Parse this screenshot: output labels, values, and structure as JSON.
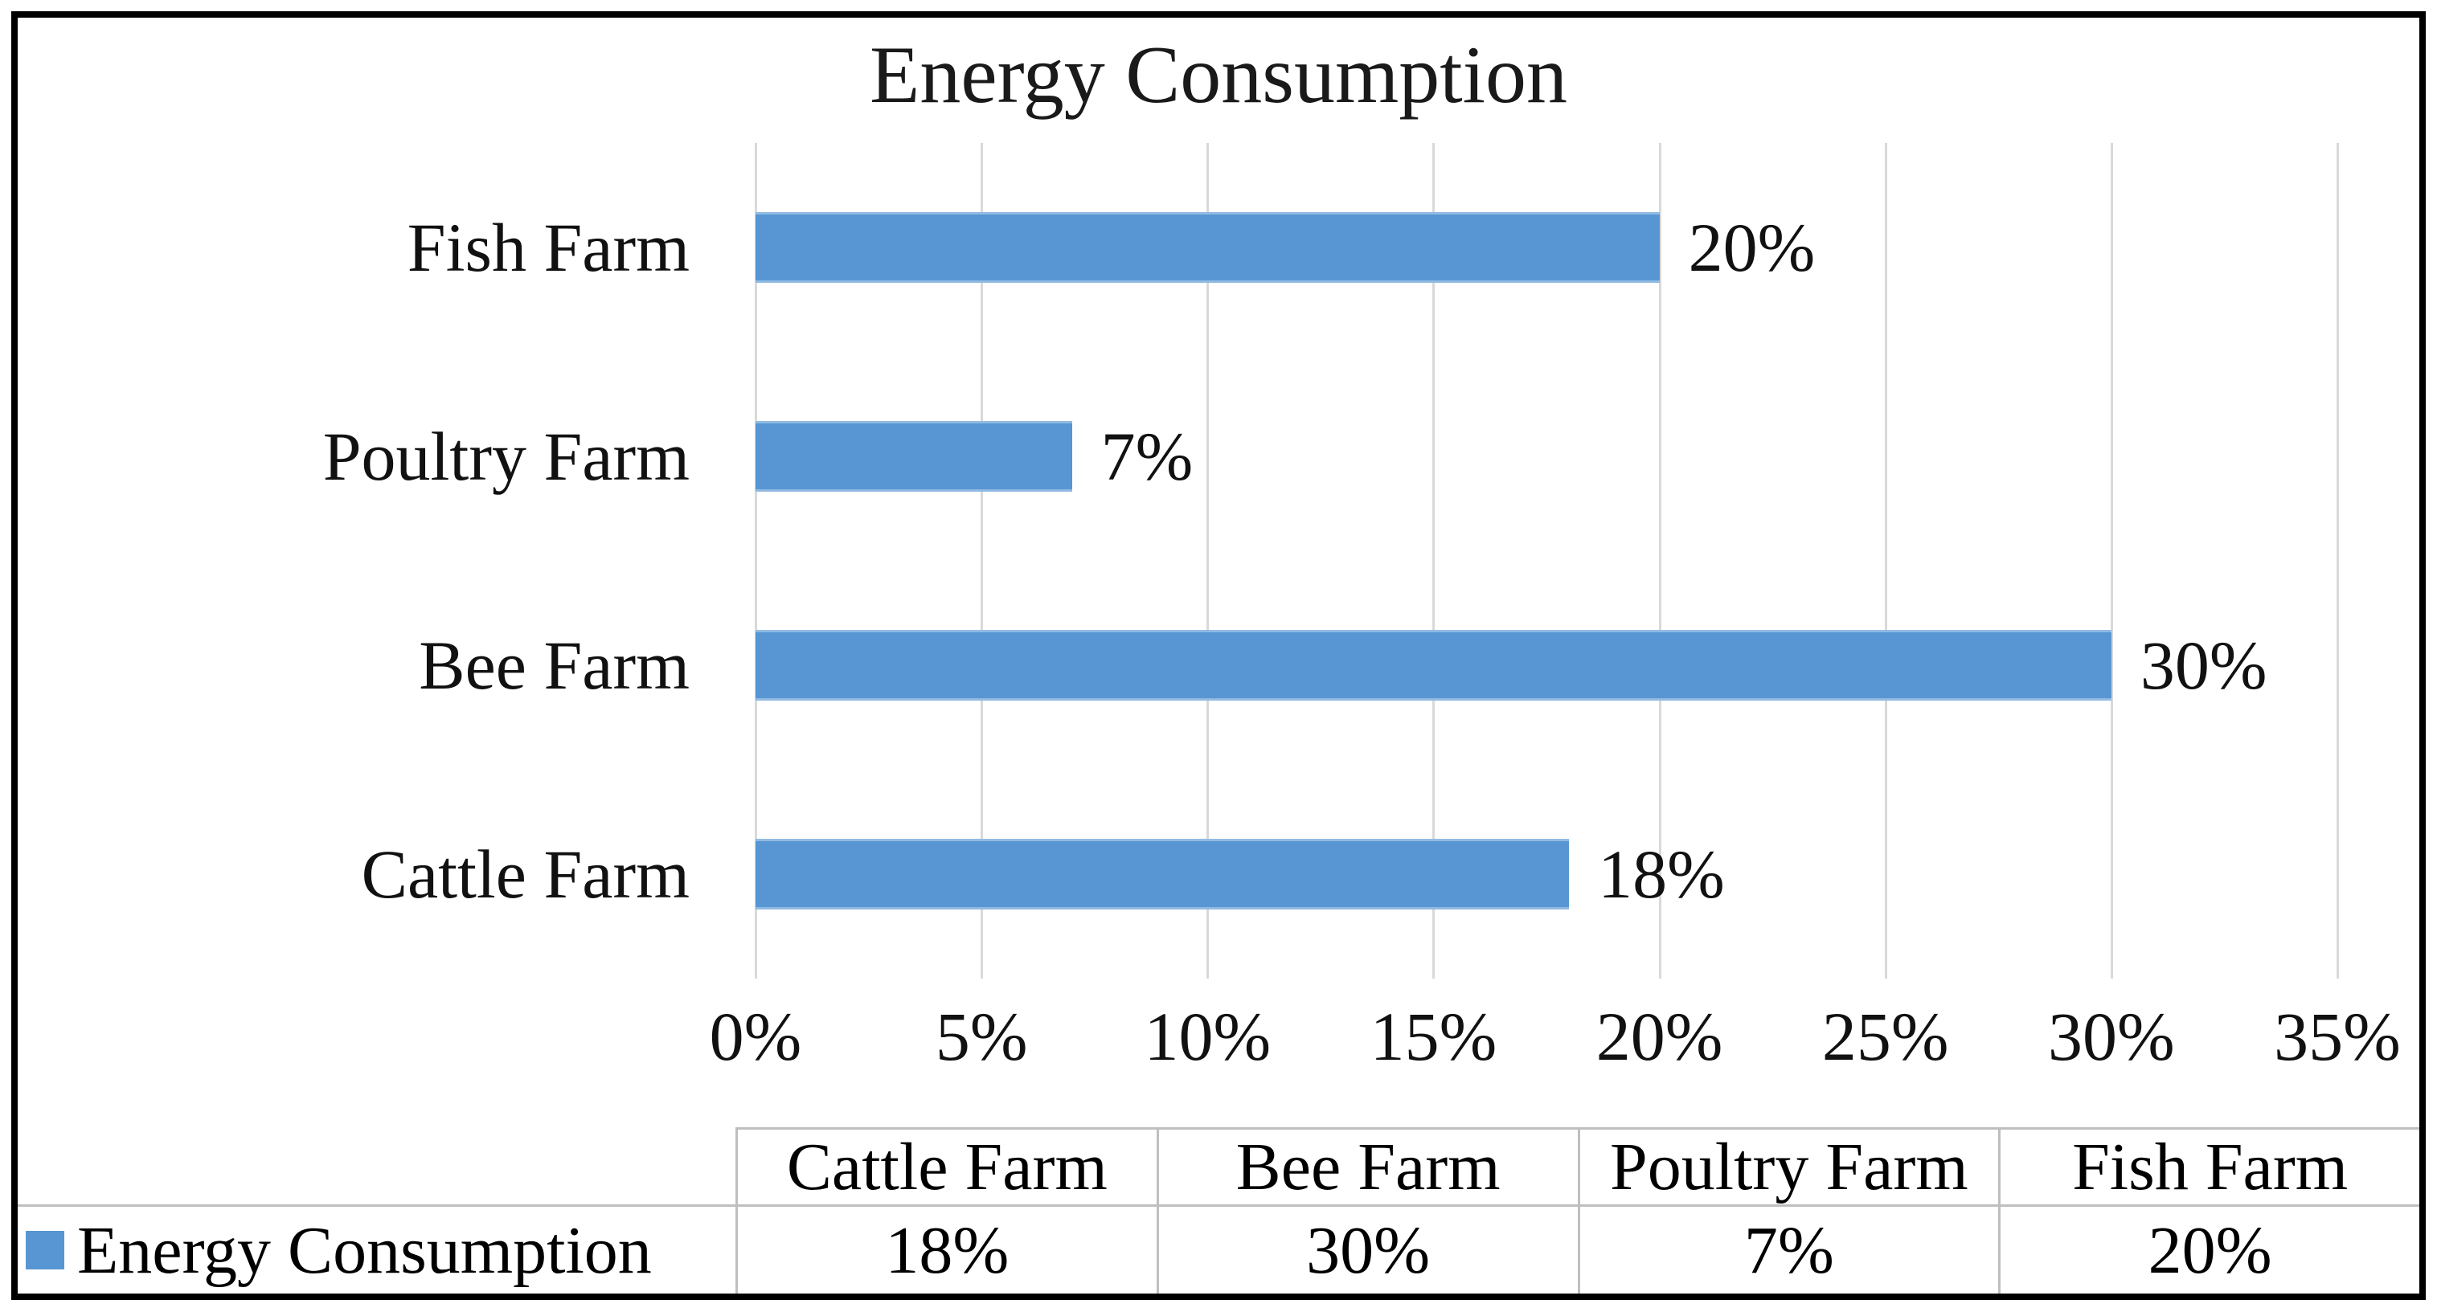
{
  "chart_data": {
    "type": "bar",
    "orientation": "horizontal",
    "title": "Energy Consumption",
    "xlabel": "",
    "ylabel": "",
    "xlim": [
      0,
      35
    ],
    "x_tick_step": 5,
    "x_ticks": [
      "0%",
      "5%",
      "10%",
      "15%",
      "20%",
      "25%",
      "30%",
      "35%"
    ],
    "gridlines": true,
    "gridline_color": "#d9d9d9",
    "bar_color": "#5796d3",
    "legend_position": "bottom-table",
    "rows": [
      {
        "category": "Fish Farm",
        "value": 20,
        "label": "20%"
      },
      {
        "category": "Poultry Farm",
        "value": 7,
        "label": "7%"
      },
      {
        "category": "Bee Farm",
        "value": 30,
        "label": "30%"
      },
      {
        "category": "Cattle Farm",
        "value": 18,
        "label": "18%"
      }
    ],
    "series": [
      {
        "name": "Energy Consumption",
        "categories": [
          "Cattle Farm",
          "Bee Farm",
          "Poultry Farm",
          "Fish Farm"
        ],
        "values": [
          18,
          30,
          7,
          20
        ]
      }
    ]
  },
  "data_table": {
    "corner_label": "",
    "columns": [
      "Cattle Farm",
      "Bee Farm",
      "Poultry Farm",
      "Fish Farm"
    ],
    "rows": [
      {
        "label": "Energy Consumption",
        "marker_color": "#5796d3",
        "values": [
          "18%",
          "30%",
          "7%",
          "20%"
        ]
      }
    ]
  }
}
